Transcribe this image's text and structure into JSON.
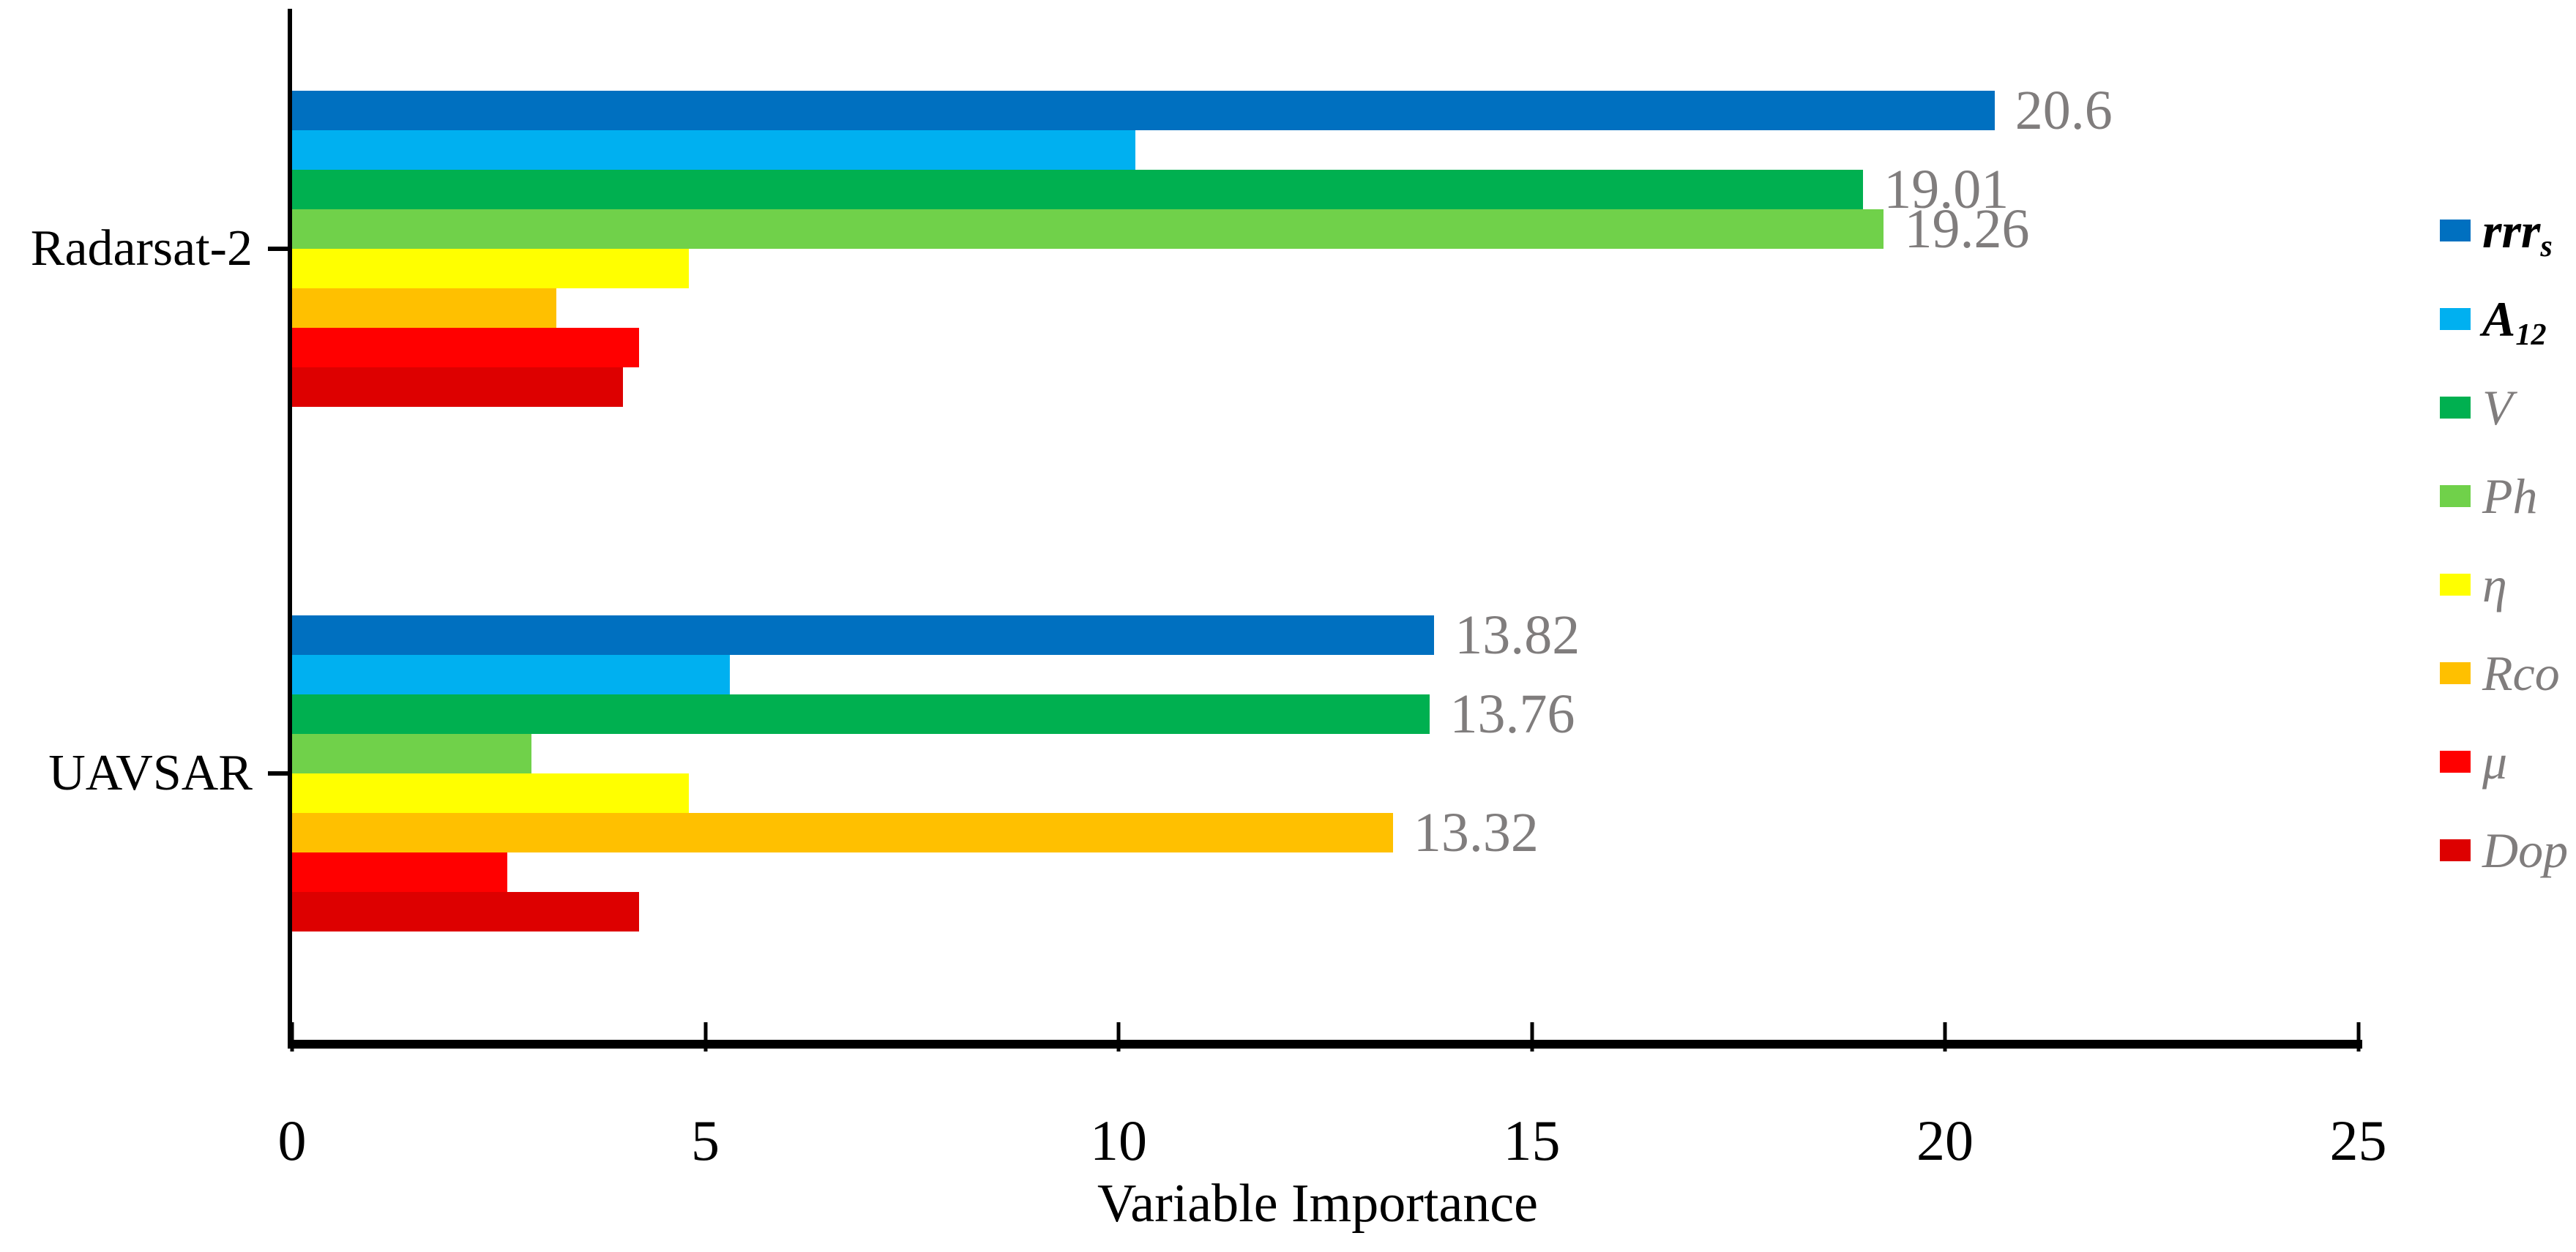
{
  "chart_data": {
    "type": "bar",
    "orientation": "horizontal",
    "title": "",
    "xlabel": "Variable Importance",
    "ylabel": "",
    "xlim": [
      0,
      25
    ],
    "x_ticks": [
      "0",
      "5",
      "10",
      "15",
      "20",
      "25"
    ],
    "grid": false,
    "legend_position": "right",
    "categories": [
      "Radarsat-2",
      "UAVSAR"
    ],
    "series": [
      {
        "name": "rrrs",
        "label_main": "rrr",
        "label_sub": "s",
        "emphasis": true,
        "color": "#0070C0",
        "values": [
          20.6,
          13.82
        ],
        "shown_labels": [
          "20.6",
          "13.82"
        ]
      },
      {
        "name": "A12",
        "label_main": "A",
        "label_sub": "12",
        "emphasis": true,
        "color": "#00B0F0",
        "values": [
          10.2,
          5.3
        ],
        "shown_labels": [
          null,
          null
        ]
      },
      {
        "name": "V",
        "label_main": "V",
        "label_sub": "",
        "emphasis": false,
        "color": "#00B050",
        "values": [
          19.01,
          13.76
        ],
        "shown_labels": [
          "19.01",
          "13.76"
        ]
      },
      {
        "name": "Ph",
        "label_main": "Ph",
        "label_sub": "",
        "emphasis": false,
        "color": "#70D14A",
        "values": [
          19.26,
          2.9
        ],
        "shown_labels": [
          "19.26",
          null
        ]
      },
      {
        "name": "eta",
        "label_main": "η",
        "label_sub": "",
        "emphasis": false,
        "color": "#FFFF00",
        "values": [
          4.8,
          4.8
        ],
        "shown_labels": [
          null,
          null
        ]
      },
      {
        "name": "Rco",
        "label_main": "Rco",
        "label_sub": "",
        "emphasis": false,
        "color": "#FFC000",
        "values": [
          3.2,
          13.32
        ],
        "shown_labels": [
          null,
          "13.32"
        ]
      },
      {
        "name": "mu",
        "label_main": "μ",
        "label_sub": "",
        "emphasis": false,
        "color": "#FF0000",
        "values": [
          4.2,
          2.6
        ],
        "shown_labels": [
          null,
          null
        ]
      },
      {
        "name": "Dop",
        "label_main": "Dop",
        "label_sub": "",
        "emphasis": false,
        "color": "#DD0000",
        "values": [
          4.0,
          4.2
        ],
        "shown_labels": [
          null,
          null
        ]
      }
    ],
    "colors": {
      "axis": "#000000",
      "tick_text": "#000000",
      "category_text": "#000000",
      "data_label_text": "#807D7D",
      "legend_muted_text": "#807D7D",
      "legend_emphasis_text": "#000000",
      "background": "#FFFFFF"
    }
  }
}
